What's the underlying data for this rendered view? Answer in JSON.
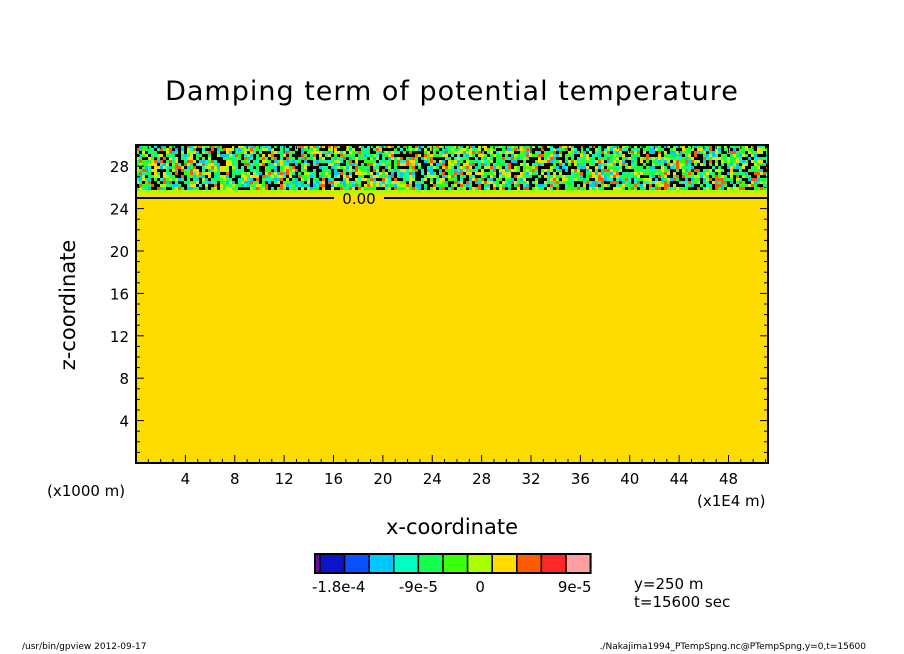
{
  "chart_data": {
    "type": "heatmap",
    "title": "Damping term of potential temperature",
    "xlabel": "x-coordinate",
    "ylabel": "z-coordinate",
    "x_unit_label": "(x1E4 m)",
    "y_unit_label": "(x1000 m)",
    "xlim": [
      0,
      51.2
    ],
    "ylim": [
      0,
      30
    ],
    "xticks": [
      "4",
      "8",
      "12",
      "16",
      "20",
      "24",
      "28",
      "32",
      "36",
      "40",
      "44",
      "48"
    ],
    "yticks": [
      "4",
      "8",
      "12",
      "16",
      "20",
      "24",
      "28"
    ],
    "contour_label": "0.00",
    "contour_level_z": 25,
    "noisy_layer_z": [
      25,
      30
    ],
    "background_value": 0,
    "colorbar": {
      "colors": [
        "#6a0a9a",
        "#0a14c8",
        "#0a50ff",
        "#00c8ff",
        "#00ffc0",
        "#14ff50",
        "#3cff0a",
        "#aaff00",
        "#ffdc00",
        "#ff5a00",
        "#ff2828",
        "#ffa0a0"
      ],
      "tick_labels": [
        "-1.8e-4",
        "-9e-5",
        "0",
        "9e-5"
      ]
    },
    "annotations": [
      "y=250 m",
      "t=15600 sec"
    ]
  },
  "footer": {
    "left": "/usr/bin/gpview   2012-09-17",
    "right": "./Nakajima1994_PTempSpng.nc@PTempSpng,y=0,t=15600"
  }
}
